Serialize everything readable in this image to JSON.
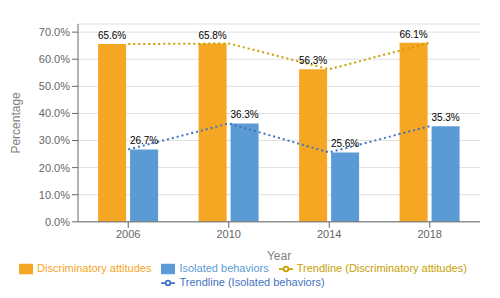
{
  "chart_data": {
    "type": "bar",
    "xlabel": "Year",
    "ylabel": "Percentage",
    "categories": [
      "2006",
      "2010",
      "2014",
      "2018"
    ],
    "series": [
      {
        "name": "Discriminatory attitudes",
        "type": "bar",
        "color": "#F5A623",
        "values": [
          65.6,
          65.8,
          56.3,
          66.1
        ],
        "value_labels": [
          "65.6%",
          "65.8%",
          "56.3%",
          "66.1%"
        ]
      },
      {
        "name": "Isolated behaviors",
        "type": "bar",
        "color": "#5B9BD5",
        "values": [
          26.7,
          36.3,
          25.6,
          35.3
        ],
        "value_labels": [
          "26.7%",
          "36.3%",
          "25.6%",
          "35.3%"
        ]
      },
      {
        "name": "Trendline (Discriminatory attitudes)",
        "type": "line",
        "color": "#C8A000",
        "line_style": "dotted",
        "values": [
          65.6,
          65.8,
          56.3,
          66.1
        ]
      },
      {
        "name": "Trendline (Isolated behaviors)",
        "type": "line",
        "color": "#4472C4",
        "line_style": "dotted",
        "values": [
          26.7,
          36.3,
          25.6,
          35.3
        ]
      }
    ],
    "ylim": [
      0,
      73
    ],
    "yticks": [
      {
        "value": 0,
        "label": "0.0%"
      },
      {
        "value": 10,
        "label": "10.0%"
      },
      {
        "value": 20,
        "label": "20.0%"
      },
      {
        "value": 30,
        "label": "30.0%"
      },
      {
        "value": 40,
        "label": "40.0%"
      },
      {
        "value": 50,
        "label": "50.0%"
      },
      {
        "value": 60,
        "label": "60.0%"
      },
      {
        "value": 70,
        "label": "70.0%"
      }
    ],
    "grid": true,
    "data_labels": true,
    "legend": "bottom"
  }
}
